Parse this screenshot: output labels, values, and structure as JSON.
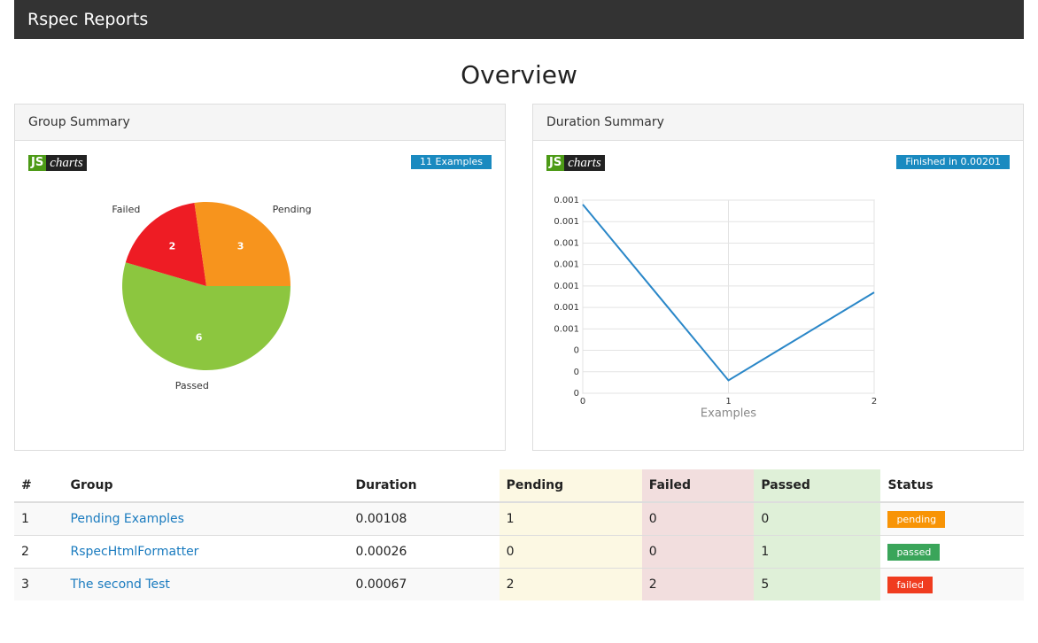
{
  "header": {
    "title": "Rspec Reports"
  },
  "title": "Overview",
  "panels": [
    {
      "title": "Group Summary",
      "logo": [
        "JS",
        "charts"
      ],
      "badge": "11 Examples"
    },
    {
      "title": "Duration Summary",
      "logo": [
        "JS",
        "charts"
      ],
      "badge": "Finished in 0.00201"
    }
  ],
  "chart_data": [
    {
      "type": "pie",
      "categories": [
        "Passed",
        "Failed",
        "Pending"
      ],
      "values": [
        6,
        2,
        3
      ],
      "colors": [
        "#8cc63f",
        "#ee1c24",
        "#f7941d"
      ]
    },
    {
      "type": "line",
      "x": [
        0,
        1,
        2
      ],
      "xlabel": "Examples",
      "xlim": [
        0,
        2
      ],
      "xticks": [
        0,
        1,
        2
      ],
      "ylim": [
        0.0002,
        0.0011
      ],
      "yticks": [
        {
          "value": 0.0002,
          "label": "0"
        },
        {
          "value": 0.0003,
          "label": "0"
        },
        {
          "value": 0.0004,
          "label": "0"
        },
        {
          "value": 0.0005,
          "label": "0.001"
        },
        {
          "value": 0.0006,
          "label": "0.001"
        },
        {
          "value": 0.0007,
          "label": "0.001"
        },
        {
          "value": 0.0008,
          "label": "0.001"
        },
        {
          "value": 0.0009,
          "label": "0.001"
        },
        {
          "value": 0.001,
          "label": "0.001"
        },
        {
          "value": 0.0011,
          "label": "0.001"
        }
      ],
      "grid": true,
      "series": [
        {
          "color": "#2a87c8",
          "values": [
            0.00108,
            0.00026,
            0.00067
          ]
        }
      ]
    }
  ],
  "table": {
    "columns": [
      "#",
      "Group",
      "Duration",
      "Pending",
      "Failed",
      "Passed",
      "Status"
    ],
    "rows": [
      [
        1,
        "Pending Examples",
        0.00108,
        1,
        0,
        0,
        "pending"
      ],
      [
        2,
        "RspecHtmlFormatter",
        0.00026,
        0,
        0,
        1,
        "passed"
      ],
      [
        3,
        "The second Test",
        0.00067,
        2,
        2,
        5,
        "failed"
      ]
    ],
    "status_colors": [
      "#f89406",
      "#3aa55a",
      "#f03c1f"
    ]
  }
}
